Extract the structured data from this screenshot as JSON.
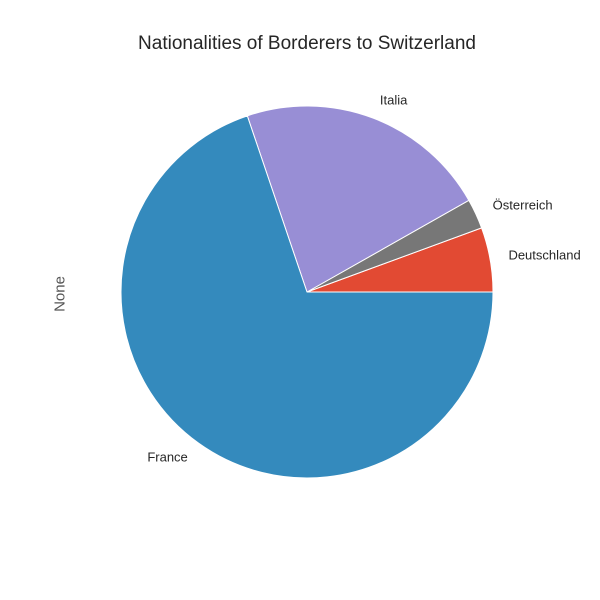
{
  "chart_data": {
    "type": "pie",
    "title": "Nationalities of Borderers to Switzerland",
    "ylabel": "None",
    "categories": [
      "Deutschland",
      "Österreich",
      "Italia",
      "France"
    ],
    "values": [
      5.6,
      2.6,
      22.0,
      69.8
    ],
    "colors": [
      "#E24A33",
      "#777777",
      "#988ED5",
      "#348ABD"
    ],
    "start_angle_deg": 0,
    "direction": "counterclockwise",
    "edge_color": "#ffffff"
  }
}
